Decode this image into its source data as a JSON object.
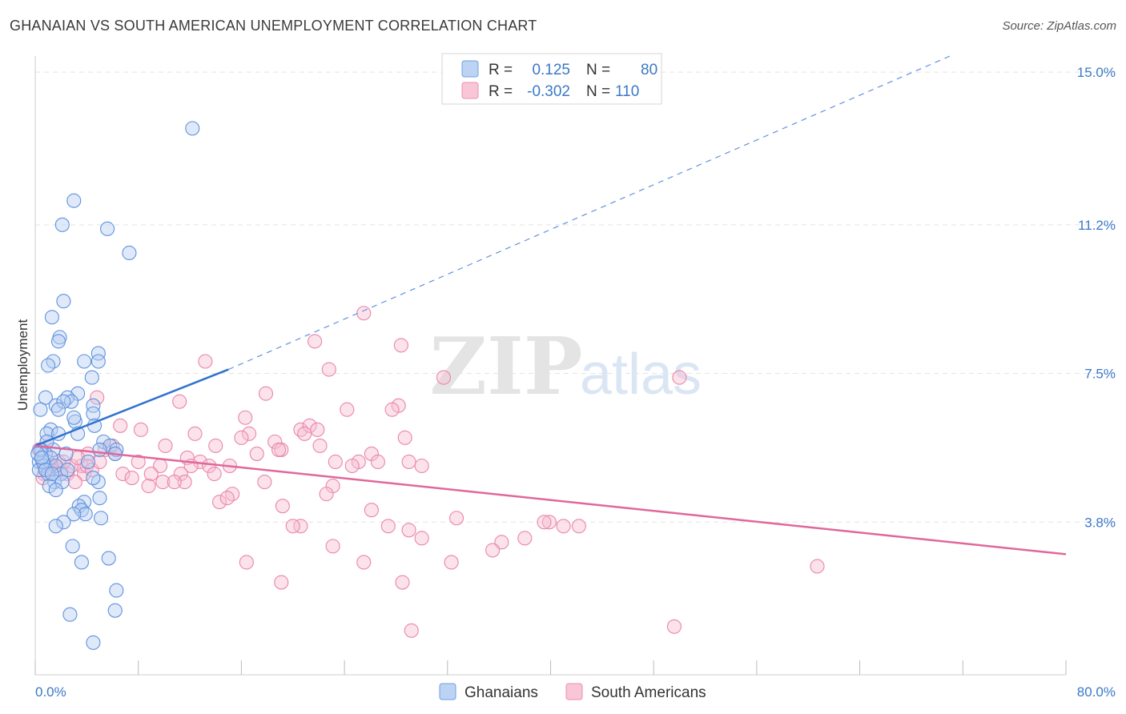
{
  "header": {
    "title": "GHANAIAN VS SOUTH AMERICAN UNEMPLOYMENT CORRELATION CHART",
    "source": "Source: ZipAtlas.com"
  },
  "watermark": {
    "zip": "ZIP",
    "atlas": "atlas"
  },
  "legend": {
    "rows": [
      {
        "r_label": "R =",
        "r_value": "0.125",
        "n_label": "N =",
        "n_value": "80",
        "color": "#6f9fe0"
      },
      {
        "r_label": "R =",
        "r_value": "-0.302",
        "n_label": "N =",
        "n_value": "110",
        "color": "#ee8fb0"
      }
    ]
  },
  "bottom_legend": [
    {
      "label": "Ghanaians",
      "color": "#6f9fe0"
    },
    {
      "label": "South Americans",
      "color": "#ee8fb0"
    }
  ],
  "chart_data": {
    "type": "scatter",
    "title": "GHANAIAN VS SOUTH AMERICAN UNEMPLOYMENT CORRELATION CHART",
    "xlabel": "",
    "ylabel": "Unemployment",
    "xlim": [
      0,
      80
    ],
    "ylim": [
      0,
      15.5
    ],
    "x_tick_labels": [
      "0.0%",
      "80.0%"
    ],
    "y_ticks": [
      3.8,
      7.5,
      11.2,
      15.0
    ],
    "y_tick_labels": [
      "3.8%",
      "7.5%",
      "11.2%",
      "15.0%"
    ],
    "grid": true,
    "series": [
      {
        "name": "Ghanaians",
        "color": "#6f9fe0",
        "r": 0.125,
        "n": 80,
        "trend": {
          "solid": [
            [
              0,
              5.7
            ],
            [
              15,
              7.6
            ]
          ],
          "dashed": [
            [
              15,
              7.6
            ],
            [
              71,
              15.4
            ]
          ]
        },
        "points": [
          [
            12.2,
            13.6
          ],
          [
            3.0,
            11.8
          ],
          [
            2.1,
            11.2
          ],
          [
            5.6,
            11.1
          ],
          [
            7.3,
            10.5
          ],
          [
            2.2,
            9.3
          ],
          [
            1.3,
            8.9
          ],
          [
            1.9,
            8.4
          ],
          [
            1.8,
            8.3
          ],
          [
            4.9,
            8.0
          ],
          [
            1.4,
            7.8
          ],
          [
            3.8,
            7.8
          ],
          [
            4.9,
            7.8
          ],
          [
            1.0,
            7.7
          ],
          [
            4.4,
            7.4
          ],
          [
            3.3,
            7.0
          ],
          [
            2.5,
            6.9
          ],
          [
            2.8,
            6.8
          ],
          [
            0.8,
            6.9
          ],
          [
            1.6,
            6.7
          ],
          [
            2.2,
            6.8
          ],
          [
            4.5,
            6.7
          ],
          [
            0.4,
            6.6
          ],
          [
            3.1,
            6.3
          ],
          [
            4.5,
            6.5
          ],
          [
            1.8,
            6.6
          ],
          [
            1.2,
            6.1
          ],
          [
            0.9,
            6.0
          ],
          [
            1.8,
            6.0
          ],
          [
            3.0,
            6.4
          ],
          [
            3.3,
            6.0
          ],
          [
            4.6,
            6.2
          ],
          [
            0.5,
            5.6
          ],
          [
            1.4,
            5.6
          ],
          [
            0.8,
            5.5
          ],
          [
            1.2,
            5.4
          ],
          [
            0.6,
            5.3
          ],
          [
            0.3,
            5.3
          ],
          [
            0.7,
            5.2
          ],
          [
            1.6,
            5.2
          ],
          [
            5.3,
            5.8
          ],
          [
            5.8,
            5.7
          ],
          [
            6.3,
            5.6
          ],
          [
            5.0,
            5.6
          ],
          [
            6.2,
            5.5
          ],
          [
            0.3,
            5.1
          ],
          [
            1.0,
            5.0
          ],
          [
            2.0,
            5.0
          ],
          [
            0.6,
            5.3
          ],
          [
            2.5,
            5.1
          ],
          [
            4.1,
            5.3
          ],
          [
            1.5,
            4.8
          ],
          [
            2.1,
            4.8
          ],
          [
            1.1,
            4.7
          ],
          [
            1.6,
            4.6
          ],
          [
            3.8,
            4.3
          ],
          [
            5.0,
            4.4
          ],
          [
            3.4,
            4.2
          ],
          [
            3.6,
            4.1
          ],
          [
            3.9,
            4.0
          ],
          [
            3.0,
            4.0
          ],
          [
            4.9,
            4.8
          ],
          [
            4.5,
            4.9
          ],
          [
            2.2,
            3.8
          ],
          [
            1.6,
            3.7
          ],
          [
            5.1,
            3.9
          ],
          [
            2.9,
            3.2
          ],
          [
            3.6,
            2.8
          ],
          [
            5.7,
            2.9
          ],
          [
            6.3,
            2.1
          ],
          [
            2.7,
            1.5
          ],
          [
            6.2,
            1.6
          ],
          [
            4.5,
            0.8
          ],
          [
            0.9,
            5.8
          ],
          [
            0.4,
            5.6
          ],
          [
            0.2,
            5.5
          ],
          [
            0.5,
            5.4
          ],
          [
            0.8,
            5.1
          ],
          [
            1.3,
            5.0
          ],
          [
            2.4,
            5.5
          ]
        ]
      },
      {
        "name": "South Americans",
        "color": "#ee8fb0",
        "r": -0.302,
        "n": 110,
        "trend": {
          "solid": [
            [
              0,
              5.7
            ],
            [
              80,
              3.0
            ]
          ]
        },
        "points": [
          [
            25.5,
            9.0
          ],
          [
            21.7,
            8.3
          ],
          [
            28.4,
            8.2
          ],
          [
            13.2,
            7.8
          ],
          [
            22.8,
            7.6
          ],
          [
            31.7,
            7.4
          ],
          [
            50.0,
            7.4
          ],
          [
            17.9,
            7.0
          ],
          [
            28.2,
            6.7
          ],
          [
            27.7,
            6.6
          ],
          [
            24.2,
            6.6
          ],
          [
            11.2,
            6.8
          ],
          [
            4.8,
            6.9
          ],
          [
            6.6,
            6.2
          ],
          [
            8.2,
            6.1
          ],
          [
            16.3,
            6.4
          ],
          [
            16.6,
            6.0
          ],
          [
            16.0,
            5.9
          ],
          [
            18.6,
            5.8
          ],
          [
            20.6,
            6.1
          ],
          [
            21.3,
            6.2
          ],
          [
            21.9,
            6.1
          ],
          [
            20.9,
            6.0
          ],
          [
            28.7,
            5.9
          ],
          [
            12.4,
            6.0
          ],
          [
            19.1,
            5.6
          ],
          [
            22.1,
            5.7
          ],
          [
            14.0,
            5.7
          ],
          [
            10.1,
            5.7
          ],
          [
            6.2,
            5.5
          ],
          [
            26.1,
            5.5
          ],
          [
            17.2,
            5.5
          ],
          [
            18.9,
            5.6
          ],
          [
            11.8,
            5.4
          ],
          [
            12.8,
            5.3
          ],
          [
            9.7,
            5.2
          ],
          [
            8.0,
            5.3
          ],
          [
            12.1,
            5.2
          ],
          [
            13.5,
            5.2
          ],
          [
            15.1,
            5.2
          ],
          [
            23.3,
            5.3
          ],
          [
            25.1,
            5.3
          ],
          [
            24.6,
            5.2
          ],
          [
            26.6,
            5.3
          ],
          [
            29.0,
            5.3
          ],
          [
            30.0,
            5.2
          ],
          [
            4.1,
            5.5
          ],
          [
            5.4,
            5.6
          ],
          [
            3.6,
            5.2
          ],
          [
            2.0,
            5.1
          ],
          [
            1.5,
            5.2
          ],
          [
            0.9,
            5.1
          ],
          [
            2.5,
            5.0
          ],
          [
            3.8,
            5.0
          ],
          [
            0.7,
            5.0
          ],
          [
            1.3,
            5.2
          ],
          [
            1.8,
            5.3
          ],
          [
            4.0,
            5.2
          ],
          [
            6.8,
            5.0
          ],
          [
            9.0,
            5.0
          ],
          [
            11.3,
            5.0
          ],
          [
            13.9,
            5.0
          ],
          [
            7.5,
            4.9
          ],
          [
            3.1,
            4.8
          ],
          [
            4.4,
            5.1
          ],
          [
            11.6,
            4.8
          ],
          [
            9.9,
            4.8
          ],
          [
            8.8,
            4.7
          ],
          [
            10.8,
            4.8
          ],
          [
            17.8,
            4.8
          ],
          [
            23.1,
            4.7
          ],
          [
            15.3,
            4.5
          ],
          [
            14.3,
            4.3
          ],
          [
            14.9,
            4.4
          ],
          [
            22.6,
            4.5
          ],
          [
            19.2,
            4.2
          ],
          [
            26.1,
            4.1
          ],
          [
            32.7,
            3.9
          ],
          [
            39.9,
            3.8
          ],
          [
            41.0,
            3.7
          ],
          [
            39.5,
            3.8
          ],
          [
            42.2,
            3.7
          ],
          [
            27.4,
            3.7
          ],
          [
            20.6,
            3.7
          ],
          [
            20.0,
            3.7
          ],
          [
            29.0,
            3.6
          ],
          [
            30.0,
            3.4
          ],
          [
            38.0,
            3.4
          ],
          [
            36.2,
            3.3
          ],
          [
            35.5,
            3.1
          ],
          [
            23.1,
            3.2
          ],
          [
            16.4,
            2.8
          ],
          [
            25.5,
            2.8
          ],
          [
            32.3,
            2.8
          ],
          [
            60.7,
            2.7
          ],
          [
            19.1,
            2.3
          ],
          [
            28.5,
            2.3
          ],
          [
            29.2,
            1.1
          ],
          [
            49.6,
            1.2
          ],
          [
            0.3,
            5.6
          ],
          [
            0.5,
            5.4
          ],
          [
            1.0,
            5.3
          ],
          [
            1.2,
            5.1
          ],
          [
            2.8,
            5.2
          ],
          [
            3.3,
            5.4
          ],
          [
            0.6,
            4.9
          ],
          [
            0.9,
            5.8
          ],
          [
            2.2,
            5.3
          ],
          [
            5.0,
            5.3
          ],
          [
            6.0,
            5.7
          ]
        ]
      }
    ]
  }
}
